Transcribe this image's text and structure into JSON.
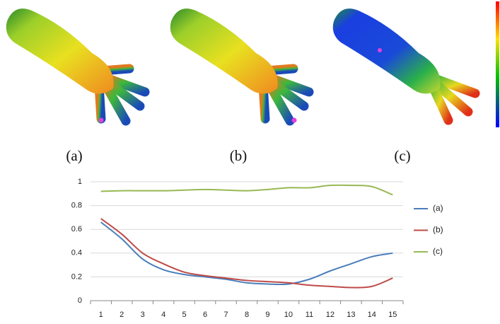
{
  "panel_labels": [
    "(a)",
    "(b)",
    "(c)"
  ],
  "chart_data": {
    "type": "line",
    "categories": [
      "1",
      "2",
      "3",
      "4",
      "5",
      "6",
      "7",
      "8",
      "9",
      "10",
      "11",
      "12",
      "13",
      "14",
      "15"
    ],
    "ylim": [
      0,
      1
    ],
    "yticks": [
      0,
      0.2,
      0.4,
      0.6,
      0.8,
      1
    ],
    "grid": true,
    "legend": "right",
    "series": [
      {
        "name": "(a)",
        "color": "#4a7ebb",
        "values": [
          0.66,
          0.52,
          0.35,
          0.26,
          0.22,
          0.2,
          0.18,
          0.15,
          0.14,
          0.14,
          0.18,
          0.25,
          0.31,
          0.37,
          0.4
        ]
      },
      {
        "name": "(b)",
        "color": "#be4b48",
        "values": [
          0.69,
          0.56,
          0.4,
          0.31,
          0.24,
          0.21,
          0.19,
          0.17,
          0.16,
          0.15,
          0.13,
          0.12,
          0.11,
          0.12,
          0.19
        ]
      },
      {
        "name": "(c)",
        "color": "#98b954",
        "values": [
          0.92,
          0.925,
          0.925,
          0.925,
          0.93,
          0.935,
          0.93,
          0.925,
          0.935,
          0.95,
          0.95,
          0.97,
          0.97,
          0.96,
          0.89
        ]
      }
    ]
  }
}
